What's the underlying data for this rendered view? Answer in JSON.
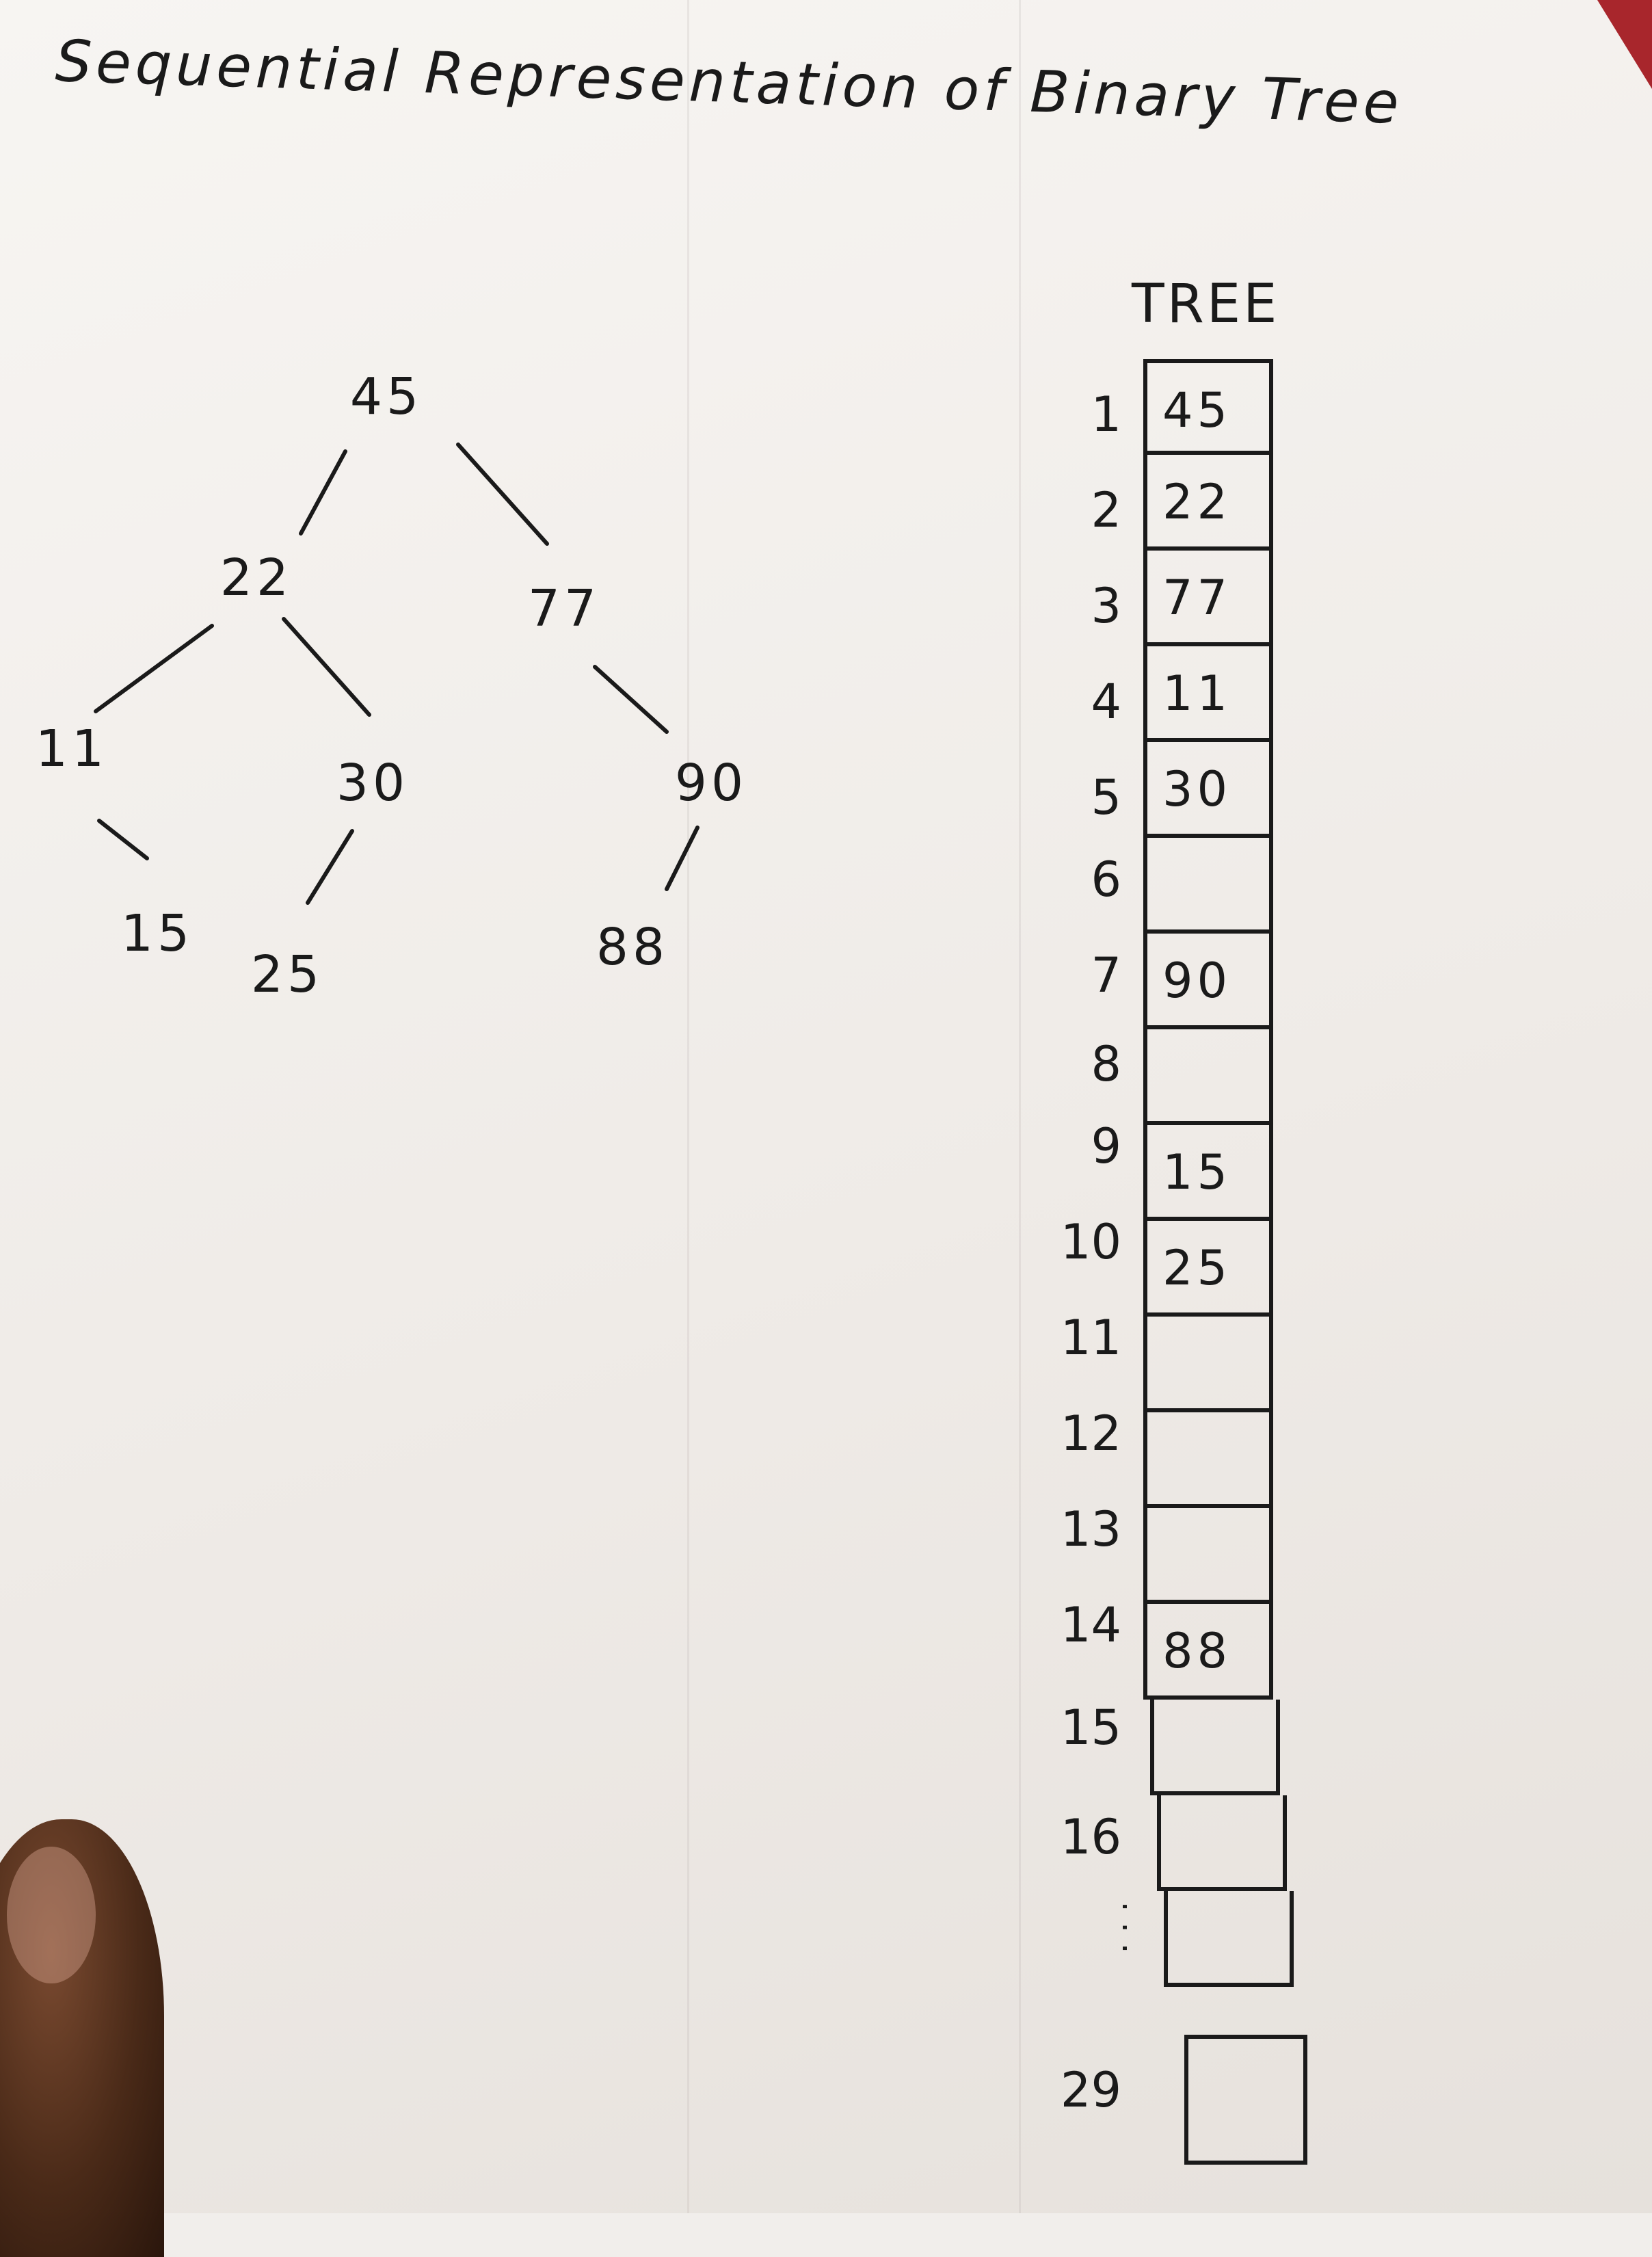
{
  "title": "Sequential Representation of Binary Tree",
  "diagram": {
    "nodes": [
      {
        "id": "n45",
        "label": "45"
      },
      {
        "id": "n22",
        "label": "22"
      },
      {
        "id": "n77",
        "label": "77"
      },
      {
        "id": "n11",
        "label": "11"
      },
      {
        "id": "n30",
        "label": "30"
      },
      {
        "id": "n90",
        "label": "90"
      },
      {
        "id": "n15",
        "label": "15"
      },
      {
        "id": "n25",
        "label": "25"
      },
      {
        "id": "n88",
        "label": "88"
      }
    ],
    "edges": [
      {
        "from": "45",
        "to": "22"
      },
      {
        "from": "45",
        "to": "77"
      },
      {
        "from": "22",
        "to": "11"
      },
      {
        "from": "22",
        "to": "30"
      },
      {
        "from": "77",
        "to": "90"
      },
      {
        "from": "11",
        "to": "15"
      },
      {
        "from": "30",
        "to": "25"
      },
      {
        "from": "90",
        "to": "88"
      }
    ]
  },
  "array": {
    "label": "TREE",
    "rows": [
      {
        "index": "1",
        "value": "45"
      },
      {
        "index": "2",
        "value": "22"
      },
      {
        "index": "3",
        "value": "77"
      },
      {
        "index": "4",
        "value": "11"
      },
      {
        "index": "5",
        "value": "30"
      },
      {
        "index": "6",
        "value": ""
      },
      {
        "index": "7",
        "value": "90"
      },
      {
        "index": "8",
        "value": ""
      },
      {
        "index": "9",
        "value": "15"
      },
      {
        "index": "10",
        "value": "25"
      },
      {
        "index": "11",
        "value": ""
      },
      {
        "index": "12",
        "value": ""
      },
      {
        "index": "13",
        "value": ""
      },
      {
        "index": "14",
        "value": "88"
      },
      {
        "index": "15",
        "value": ""
      },
      {
        "index": "16",
        "value": ""
      },
      {
        "index": "",
        "value": ""
      },
      {
        "index": "29",
        "value": ""
      }
    ]
  }
}
